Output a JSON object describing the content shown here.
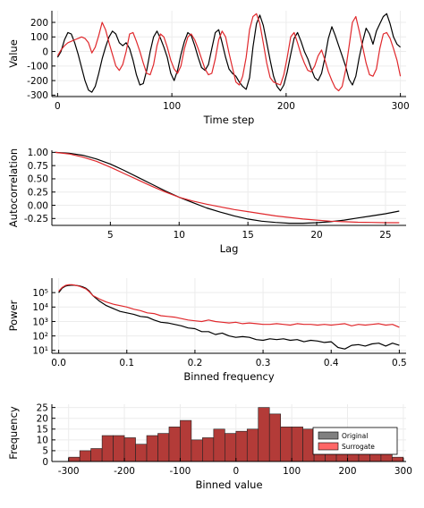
{
  "colors": {
    "original": "#000000",
    "surrogate": "#e0282c",
    "hist_fill": "#b33b38",
    "hist_edge": "#222222",
    "grid": "#ececec",
    "axis": "#000000"
  },
  "chart_data": [
    {
      "type": "line",
      "id": "timeseries",
      "xlabel": "Time step",
      "ylabel": "Value",
      "xlim": [
        -5,
        305
      ],
      "ylim": [
        -310,
        280
      ],
      "xticks": [
        0,
        100,
        200,
        300
      ],
      "xtick_labels": [
        "0",
        "100",
        "200",
        "300"
      ],
      "yticks": [
        -300,
        -200,
        -100,
        0,
        100,
        200
      ],
      "ytick_labels": [
        "-300",
        "-200",
        "-100",
        "0",
        "100",
        "200"
      ],
      "grid": true,
      "series": [
        {
          "color": "#000000",
          "x": [
            0,
            3,
            6,
            9,
            12,
            15,
            18,
            21,
            24,
            27,
            30,
            33,
            36,
            39,
            42,
            45,
            48,
            51,
            54,
            57,
            60,
            63,
            66,
            69,
            72,
            75,
            78,
            81,
            84,
            87,
            90,
            93,
            96,
            99,
            102,
            105,
            108,
            111,
            114,
            117,
            120,
            123,
            126,
            129,
            132,
            135,
            138,
            141,
            144,
            147,
            150,
            153,
            156,
            159,
            162,
            165,
            168,
            171,
            174,
            177,
            180,
            183,
            186,
            189,
            192,
            195,
            198,
            201,
            204,
            207,
            210,
            213,
            216,
            219,
            222,
            225,
            228,
            231,
            234,
            237,
            240,
            243,
            246,
            249,
            252,
            255,
            258,
            261,
            264,
            267,
            270,
            273,
            276,
            279,
            282,
            285,
            288,
            291,
            294,
            297,
            300
          ],
          "y": [
            -40,
            0,
            80,
            130,
            120,
            60,
            -20,
            -110,
            -200,
            -265,
            -280,
            -240,
            -150,
            -50,
            30,
            100,
            140,
            120,
            60,
            40,
            60,
            20,
            -60,
            -160,
            -230,
            -220,
            -130,
            0,
            100,
            140,
            90,
            30,
            -40,
            -150,
            -200,
            -130,
            -20,
            70,
            130,
            110,
            40,
            -40,
            -110,
            -130,
            -90,
            20,
            130,
            150,
            60,
            -40,
            -120,
            -150,
            -170,
            -210,
            -240,
            -260,
            -180,
            30,
            190,
            250,
            180,
            60,
            -60,
            -170,
            -240,
            -270,
            -230,
            -140,
            -20,
            90,
            130,
            70,
            0,
            -50,
            -120,
            -180,
            -200,
            -150,
            -40,
            90,
            170,
            110,
            40,
            -30,
            -100,
            -190,
            -230,
            -170,
            -40,
            70,
            160,
            120,
            50,
            140,
            190,
            240,
            260,
            190,
            100,
            50,
            30
          ]
        },
        {
          "color": "#e0282c",
          "x": [
            0,
            3,
            6,
            9,
            12,
            15,
            18,
            21,
            24,
            27,
            30,
            33,
            36,
            39,
            42,
            45,
            48,
            51,
            54,
            57,
            60,
            63,
            66,
            69,
            72,
            75,
            78,
            81,
            84,
            87,
            90,
            93,
            96,
            99,
            102,
            105,
            108,
            111,
            114,
            117,
            120,
            123,
            126,
            129,
            132,
            135,
            138,
            141,
            144,
            147,
            150,
            153,
            156,
            159,
            162,
            165,
            168,
            171,
            174,
            177,
            180,
            183,
            186,
            189,
            192,
            195,
            198,
            201,
            204,
            207,
            210,
            213,
            216,
            219,
            222,
            225,
            228,
            231,
            234,
            237,
            240,
            243,
            246,
            249,
            252,
            255,
            258,
            261,
            264,
            267,
            270,
            273,
            276,
            279,
            282,
            285,
            288,
            291,
            294,
            297,
            300
          ],
          "y": [
            -30,
            10,
            40,
            60,
            70,
            80,
            90,
            100,
            90,
            60,
            -10,
            30,
            110,
            200,
            150,
            60,
            -20,
            -100,
            -130,
            -90,
            0,
            120,
            130,
            70,
            0,
            -80,
            -150,
            -160,
            -90,
            40,
            120,
            100,
            30,
            -60,
            -120,
            -150,
            -100,
            20,
            100,
            120,
            80,
            20,
            -50,
            -120,
            -160,
            -150,
            -50,
            80,
            140,
            100,
            -10,
            -110,
            -210,
            -230,
            -170,
            -40,
            150,
            240,
            260,
            190,
            60,
            -80,
            -180,
            -210,
            -220,
            -230,
            -160,
            -40,
            100,
            130,
            60,
            -20,
            -80,
            -130,
            -140,
            -100,
            -30,
            10,
            -60,
            -140,
            -200,
            -250,
            -270,
            -240,
            -130,
            30,
            200,
            240,
            140,
            30,
            -80,
            -160,
            -170,
            -120,
            20,
            120,
            130,
            90,
            20,
            -60,
            -170
          ]
        }
      ]
    },
    {
      "type": "line",
      "id": "autocorrelation",
      "xlabel": "Lag",
      "ylabel": "Autocorrelation",
      "xlim": [
        0.75,
        26.5
      ],
      "ylim": [
        -0.38,
        1.04
      ],
      "xticks": [
        5,
        10,
        15,
        20,
        25
      ],
      "xtick_labels": [
        "5",
        "10",
        "15",
        "20",
        "25"
      ],
      "yticks": [
        1.0,
        0.75,
        0.5,
        0.25,
        0.0,
        -0.25
      ],
      "ytick_labels": [
        "1.00",
        "0.75",
        "0.50",
        "0.25",
        "0.00",
        "-0.25"
      ],
      "grid": true,
      "series": [
        {
          "color": "#000000",
          "x": [
            1,
            2,
            3,
            4,
            5,
            6,
            7,
            8,
            9,
            10,
            11,
            12,
            13,
            14,
            15,
            16,
            17,
            18,
            19,
            20,
            21,
            22,
            23,
            24,
            25,
            26
          ],
          "y": [
            1.0,
            0.985,
            0.945,
            0.875,
            0.78,
            0.66,
            0.53,
            0.4,
            0.27,
            0.15,
            0.05,
            -0.05,
            -0.13,
            -0.2,
            -0.26,
            -0.3,
            -0.325,
            -0.34,
            -0.34,
            -0.33,
            -0.31,
            -0.28,
            -0.24,
            -0.2,
            -0.16,
            -0.11
          ]
        },
        {
          "color": "#e0282c",
          "x": [
            1,
            2,
            3,
            4,
            5,
            6,
            7,
            8,
            9,
            10,
            11,
            12,
            13,
            14,
            15,
            16,
            17,
            18,
            19,
            20,
            21,
            22,
            23,
            24,
            25,
            26
          ],
          "y": [
            1.0,
            0.97,
            0.91,
            0.83,
            0.72,
            0.6,
            0.48,
            0.36,
            0.25,
            0.15,
            0.08,
            0.02,
            -0.03,
            -0.08,
            -0.12,
            -0.16,
            -0.2,
            -0.23,
            -0.26,
            -0.28,
            -0.3,
            -0.31,
            -0.32,
            -0.325,
            -0.33,
            -0.33
          ]
        }
      ]
    },
    {
      "type": "line",
      "id": "power-spectrum",
      "xlabel": "Binned frequency",
      "ylabel": "Power",
      "yscale": "log",
      "xlim": [
        -0.01,
        0.51
      ],
      "ylim": [
        0.8,
        6.0
      ],
      "xticks": [
        0.0,
        0.1,
        0.2,
        0.3,
        0.4,
        0.5
      ],
      "xtick_labels": [
        "0.0",
        "0.1",
        "0.2",
        "0.3",
        "0.4",
        "0.5"
      ],
      "yticks": [
        5,
        4,
        3,
        2,
        1
      ],
      "ytick_labels": [
        "10⁵",
        "10⁴",
        "10³",
        "10²",
        "10¹"
      ],
      "grid": true,
      "series": [
        {
          "color": "#000000",
          "x": [
            0.0,
            0.005,
            0.01,
            0.015,
            0.02,
            0.025,
            0.03,
            0.035,
            0.04,
            0.045,
            0.05,
            0.06,
            0.07,
            0.08,
            0.09,
            0.1,
            0.11,
            0.12,
            0.13,
            0.14,
            0.15,
            0.16,
            0.17,
            0.18,
            0.19,
            0.2,
            0.21,
            0.22,
            0.23,
            0.24,
            0.25,
            0.26,
            0.27,
            0.28,
            0.29,
            0.3,
            0.31,
            0.32,
            0.33,
            0.34,
            0.35,
            0.36,
            0.37,
            0.38,
            0.39,
            0.4,
            0.41,
            0.42,
            0.43,
            0.44,
            0.45,
            0.46,
            0.47,
            0.48,
            0.49,
            0.5
          ],
          "y": [
            5.0,
            5.3,
            5.45,
            5.5,
            5.52,
            5.5,
            5.47,
            5.4,
            5.3,
            5.1,
            4.8,
            4.4,
            4.1,
            3.9,
            3.7,
            3.6,
            3.5,
            3.35,
            3.3,
            3.1,
            2.95,
            2.9,
            2.8,
            2.7,
            2.55,
            2.5,
            2.3,
            2.3,
            2.1,
            2.2,
            2.0,
            1.9,
            1.95,
            1.9,
            1.75,
            1.7,
            1.8,
            1.75,
            1.8,
            1.7,
            1.75,
            1.6,
            1.7,
            1.65,
            1.55,
            1.6,
            1.2,
            1.1,
            1.35,
            1.4,
            1.3,
            1.45,
            1.5,
            1.3,
            1.5,
            1.35
          ]
        },
        {
          "color": "#e0282c",
          "x": [
            0.0,
            0.005,
            0.01,
            0.015,
            0.02,
            0.025,
            0.03,
            0.035,
            0.04,
            0.045,
            0.05,
            0.06,
            0.07,
            0.08,
            0.09,
            0.1,
            0.11,
            0.12,
            0.13,
            0.14,
            0.15,
            0.16,
            0.17,
            0.18,
            0.19,
            0.2,
            0.21,
            0.22,
            0.23,
            0.24,
            0.25,
            0.26,
            0.27,
            0.28,
            0.29,
            0.3,
            0.31,
            0.32,
            0.33,
            0.34,
            0.35,
            0.36,
            0.37,
            0.38,
            0.39,
            0.4,
            0.41,
            0.42,
            0.43,
            0.44,
            0.45,
            0.46,
            0.47,
            0.48,
            0.49,
            0.5
          ],
          "y": [
            5.1,
            5.35,
            5.5,
            5.55,
            5.55,
            5.5,
            5.45,
            5.35,
            5.25,
            5.05,
            4.8,
            4.55,
            4.35,
            4.2,
            4.1,
            4.0,
            3.85,
            3.75,
            3.6,
            3.55,
            3.4,
            3.35,
            3.3,
            3.2,
            3.1,
            3.05,
            3.0,
            3.1,
            3.0,
            2.95,
            2.9,
            2.95,
            2.85,
            2.9,
            2.85,
            2.8,
            2.8,
            2.85,
            2.8,
            2.75,
            2.85,
            2.8,
            2.8,
            2.75,
            2.8,
            2.75,
            2.8,
            2.85,
            2.7,
            2.8,
            2.75,
            2.8,
            2.85,
            2.75,
            2.8,
            2.6
          ]
        }
      ]
    },
    {
      "type": "bar",
      "id": "histogram",
      "xlabel": "Binned value",
      "ylabel": "Frequency",
      "xlim": [
        -330,
        305
      ],
      "ylim": [
        0,
        26.5
      ],
      "xticks": [
        -300,
        -200,
        -100,
        0,
        100,
        200,
        300
      ],
      "xtick_labels": [
        "-300",
        "-200",
        "-100",
        "0",
        "100",
        "200",
        "300"
      ],
      "yticks": [
        0,
        5,
        10,
        15,
        20,
        25
      ],
      "ytick_labels": [
        "0",
        "5",
        "10",
        "15",
        "20",
        "25"
      ],
      "grid": true,
      "bin_edges": [
        -300,
        -280,
        -260,
        -240,
        -220,
        -200,
        -180,
        -160,
        -140,
        -120,
        -100,
        -80,
        -60,
        -40,
        -20,
        0,
        20,
        40,
        60,
        80,
        100,
        120,
        140,
        160,
        180,
        200,
        220,
        240,
        260,
        280
      ],
      "values": [
        2,
        5,
        6,
        12,
        12,
        11,
        8,
        12,
        13,
        16,
        19,
        10,
        11,
        15,
        13,
        14,
        15,
        25,
        22,
        16,
        16,
        15,
        10,
        10,
        10,
        10,
        7,
        9,
        6,
        2
      ],
      "legend": {
        "position": "right",
        "entries": [
          {
            "label": "Original",
            "color": "#808080"
          },
          {
            "label": "Surrogate",
            "color": "#ff6666"
          }
        ]
      }
    }
  ]
}
